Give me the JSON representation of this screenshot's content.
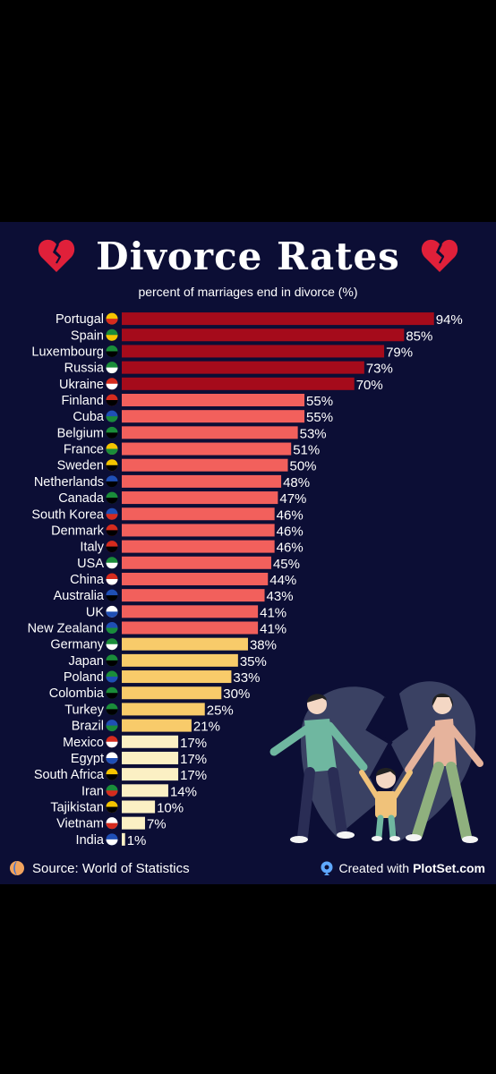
{
  "title": "Divorce Rates",
  "icons": [
    "broken-heart-icon",
    "broken-heart-icon"
  ],
  "footer": {
    "source": "Source: World of Statistics",
    "created_prefix": "Created with",
    "created_brand": "PlotSet.com"
  },
  "colors": {
    "background": "#0c0e35",
    "tier_high": "#a50b1b",
    "tier_mid": "#f2605c",
    "tier_low": "#f8cb6a",
    "tier_min": "#fbf0c4"
  },
  "chart_data": {
    "type": "bar",
    "orientation": "horizontal",
    "title": "Divorce Rates",
    "subtitle": "percent of marriages end in divorce (%)",
    "xlabel": "",
    "ylabel": "",
    "xlim": [
      0,
      100
    ],
    "grid": false,
    "value_suffix": "%",
    "categories": [
      "Portugal",
      "Spain",
      "Luxembourg",
      "Russia",
      "Ukraine",
      "Finland",
      "Cuba",
      "Belgium",
      "France",
      "Sweden",
      "Netherlands",
      "Canada",
      "South Korea",
      "Denmark",
      "Italy",
      "USA",
      "China",
      "Australia",
      "UK",
      "New Zealand",
      "Germany",
      "Japan",
      "Poland",
      "Colombia",
      "Turkey",
      "Brazil",
      "Mexico",
      "Egypt",
      "South Africa",
      "Iran",
      "Tajikistan",
      "Vietnam",
      "India"
    ],
    "values": [
      94,
      85,
      79,
      73,
      70,
      55,
      55,
      53,
      51,
      50,
      48,
      47,
      46,
      46,
      46,
      45,
      44,
      43,
      41,
      41,
      38,
      35,
      33,
      30,
      25,
      21,
      17,
      17,
      17,
      14,
      10,
      7,
      1
    ],
    "flag_icons": [
      "portugal-flag-icon",
      "spain-flag-icon",
      "luxembourg-flag-icon",
      "russia-flag-icon",
      "ukraine-flag-icon",
      "finland-flag-icon",
      "cuba-flag-icon",
      "belgium-flag-icon",
      "france-flag-icon",
      "sweden-flag-icon",
      "netherlands-flag-icon",
      "canada-flag-icon",
      "south-korea-flag-icon",
      "denmark-flag-icon",
      "italy-flag-icon",
      "usa-flag-icon",
      "china-flag-icon",
      "australia-flag-icon",
      "uk-flag-icon",
      "new-zealand-flag-icon",
      "germany-flag-icon",
      "japan-flag-icon",
      "poland-flag-icon",
      "colombia-flag-icon",
      "turkey-flag-icon",
      "brazil-flag-icon",
      "mexico-flag-icon",
      "egypt-flag-icon",
      "south-africa-flag-icon",
      "iran-flag-icon",
      "tajikistan-flag-icon",
      "vietnam-flag-icon",
      "india-flag-icon"
    ]
  }
}
